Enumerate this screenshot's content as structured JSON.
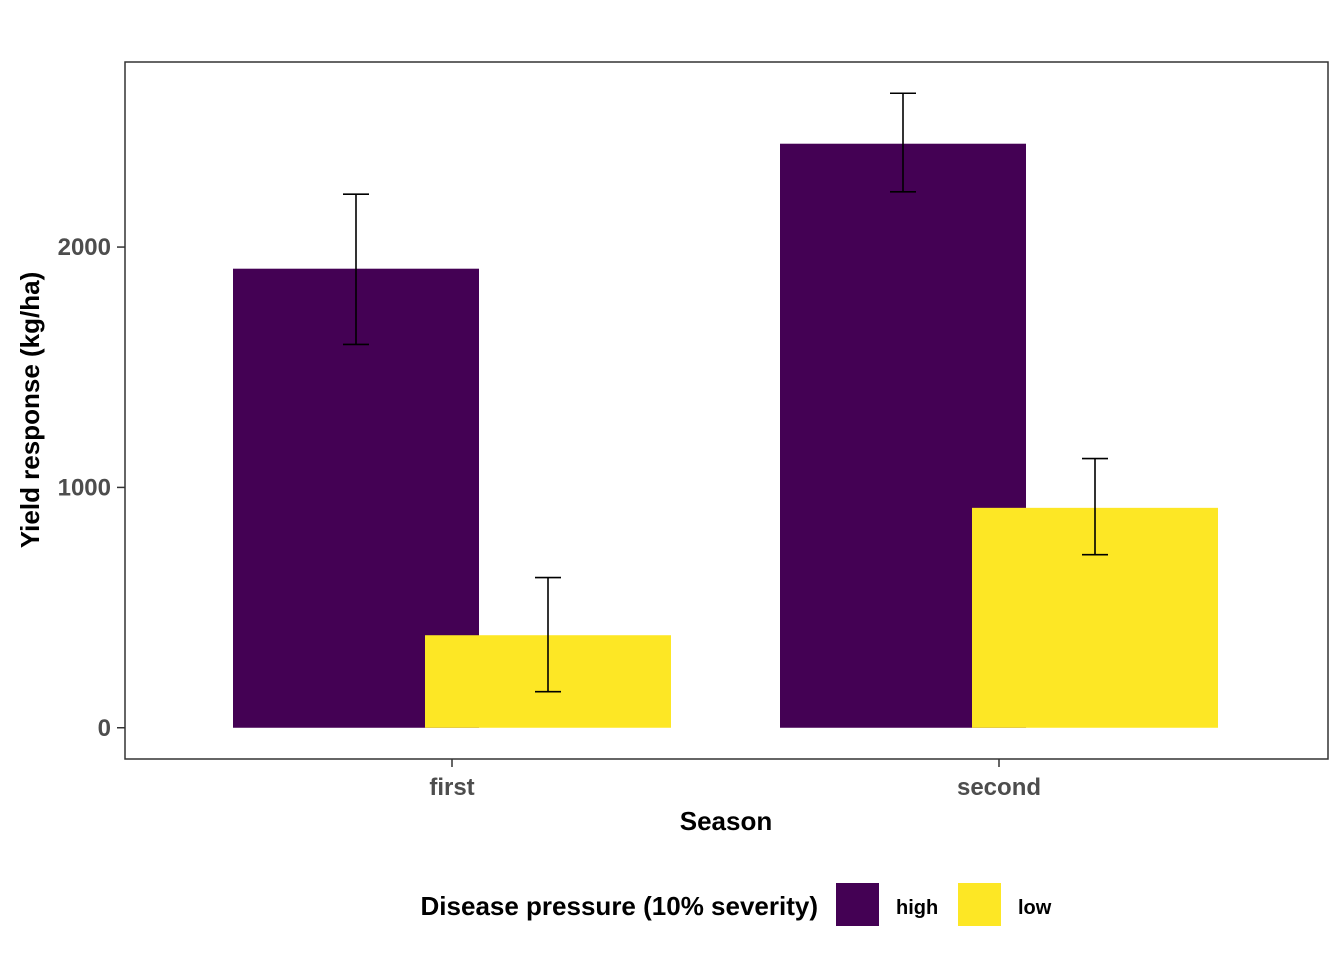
{
  "chart_data": {
    "type": "bar",
    "categories": [
      "first",
      "second"
    ],
    "series": [
      {
        "name": "high",
        "color": "#440154",
        "values": [
          1910,
          2430
        ],
        "error_low": [
          1595,
          2230
        ],
        "error_high": [
          2220,
          2640
        ]
      },
      {
        "name": "low",
        "color": "#fde725",
        "values": [
          385,
          915
        ],
        "error_low": [
          150,
          720
        ],
        "error_high": [
          625,
          1120
        ]
      }
    ],
    "xlabel": "Season",
    "ylabel": "Yield response (kg/ha)",
    "ylim": [
      -130,
      2770
    ],
    "yticks": [
      0,
      1000,
      2000
    ],
    "ytick_labels": [
      "0",
      "1000",
      "2000"
    ],
    "grid": false,
    "legend": {
      "title": "Disease pressure (10% severity)",
      "position": "bottom"
    }
  }
}
